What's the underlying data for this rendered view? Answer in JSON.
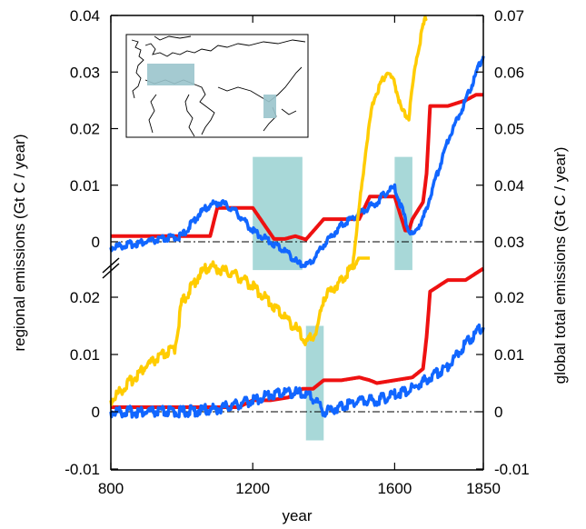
{
  "chart_data": {
    "type": "line",
    "xlabel": "year",
    "ylabel_left": "regional emissions (Gt C / year)",
    "ylabel_right": "global total emissions (Gt C / year)",
    "xlim": [
      800,
      1850
    ],
    "x_ticks": [
      "800",
      "1200",
      "1600",
      "1850"
    ],
    "colors": {
      "yellow": "#ffcc00",
      "red": "#ee1111",
      "blue": "#1166ff",
      "shade": "#a8d8d8"
    },
    "top_panel": {
      "left_ticks": [
        "0.04",
        "0.03",
        "0.02",
        "0.01",
        "0"
      ],
      "right_ticks": [
        "0.07",
        "0.06",
        "0.05",
        "0.04",
        "0.03"
      ],
      "left_range": [
        0,
        0.04
      ],
      "right_range": [
        0.03,
        0.07
      ],
      "shaded_periods": [
        [
          1200,
          1340
        ],
        [
          1600,
          1650
        ]
      ],
      "inset_map": "Europe (Western/Central) and East China regions highlighted",
      "series": [
        {
          "color": "red",
          "axis": "left",
          "x": [
            800,
            1000,
            1080,
            1100,
            1160,
            1180,
            1200,
            1260,
            1290,
            1320,
            1350,
            1400,
            1500,
            1530,
            1580,
            1590,
            1600,
            1630,
            1640,
            1650,
            1660,
            1680,
            1690,
            1700,
            1750,
            1800,
            1830,
            1850
          ],
          "y": [
            0.001,
            0.001,
            0.001,
            0.006,
            0.006,
            0.006,
            0.006,
            0.0005,
            0.0005,
            0.001,
            0.0004,
            0.004,
            0.004,
            0.008,
            0.008,
            0.008,
            0.008,
            0.002,
            0.002,
            0.004,
            0.005,
            0.007,
            0.012,
            0.024,
            0.024,
            0.025,
            0.026,
            0.026
          ]
        },
        {
          "color": "blue",
          "axis": "left",
          "x": [
            800,
            900,
            1000,
            1050,
            1080,
            1110,
            1150,
            1200,
            1250,
            1300,
            1330,
            1360,
            1400,
            1450,
            1500,
            1550,
            1580,
            1600,
            1620,
            1640,
            1650,
            1680,
            1700,
            1750,
            1800,
            1850
          ],
          "y": [
            -0.001,
            0.0,
            0.001,
            0.005,
            0.0065,
            0.007,
            0.0055,
            0.002,
            0.0,
            -0.002,
            -0.004,
            -0.004,
            -0.0005,
            0.003,
            0.005,
            0.007,
            0.009,
            0.0095,
            0.006,
            0.002,
            0.001,
            0.004,
            0.008,
            0.018,
            0.025,
            0.033
          ]
        },
        {
          "color": "yellow",
          "axis": "right",
          "x": [
            1480,
            1500,
            1520,
            1540,
            1560,
            1580,
            1600,
            1620,
            1640,
            1650,
            1660,
            1680,
            1690
          ],
          "y": [
            0.025,
            0.036,
            0.047,
            0.055,
            0.058,
            0.06,
            0.058,
            0.053,
            0.052,
            0.057,
            0.062,
            0.068,
            0.07
          ]
        }
      ]
    },
    "bottom_panel": {
      "left_ticks": [
        "0.02",
        "0.01",
        "0",
        "-0.01"
      ],
      "right_ticks": [
        "0.02",
        "0.01",
        "0",
        "-0.01"
      ],
      "left_range": [
        -0.01,
        0.025
      ],
      "right_range": [
        -0.01,
        0.025
      ],
      "shaded_periods": [
        [
          1350,
          1400
        ]
      ],
      "series": [
        {
          "color": "red",
          "x": [
            800,
            1000,
            1100,
            1160,
            1200,
            1250,
            1300,
            1340,
            1370,
            1400,
            1450,
            1500,
            1530,
            1550,
            1600,
            1650,
            1680,
            1690,
            1700,
            1750,
            1800,
            1850
          ],
          "y": [
            0.0008,
            0.0008,
            0.0008,
            0.0008,
            0.002,
            0.002,
            0.0025,
            0.004,
            0.004,
            0.0055,
            0.0055,
            0.006,
            0.0055,
            0.005,
            0.0055,
            0.006,
            0.0075,
            0.013,
            0.021,
            0.023,
            0.023,
            0.025
          ]
        },
        {
          "color": "blue",
          "x": [
            800,
            900,
            1000,
            1100,
            1200,
            1250,
            1300,
            1350,
            1380,
            1400,
            1450,
            1500,
            1550,
            1600,
            1650,
            1700,
            1750,
            1800,
            1850
          ],
          "y": [
            0.0,
            0.0,
            0.0,
            0.0005,
            0.002,
            0.003,
            0.0035,
            0.003,
            0.002,
            0.0,
            0.001,
            0.002,
            0.002,
            0.003,
            0.004,
            0.006,
            0.008,
            0.012,
            0.015
          ]
        },
        {
          "color": "yellow",
          "x": [
            800,
            850,
            900,
            950,
            980,
            1000,
            1050,
            1080,
            1100,
            1150,
            1200,
            1250,
            1300,
            1330,
            1350,
            1380,
            1400,
            1450,
            1500,
            1530
          ],
          "y": [
            0.002,
            0.005,
            0.008,
            0.01,
            0.011,
            0.019,
            0.024,
            0.0255,
            0.025,
            0.024,
            0.022,
            0.019,
            0.016,
            0.014,
            0.012,
            0.014,
            0.02,
            0.023,
            0.027,
            0.032
          ]
        }
      ]
    }
  }
}
